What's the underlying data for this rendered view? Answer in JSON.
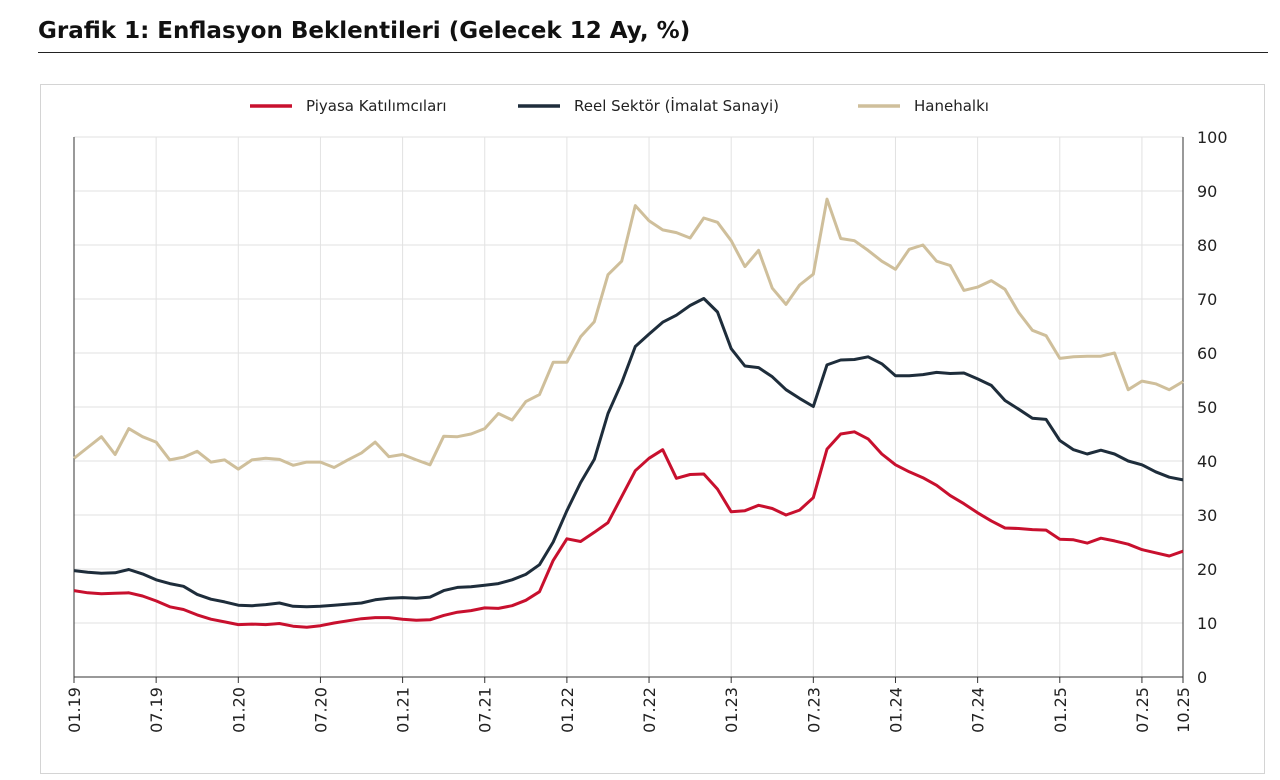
{
  "title": "Grafik 1: Enflasyon Beklentileri (Gelecek 12 Ay, %)",
  "chart_data": {
    "type": "line",
    "title": "Grafik 1: Enflasyon Beklentileri (Gelecek 12 Ay, %)",
    "x_start": "01.19",
    "x_end": "10.25",
    "frequency": "monthly",
    "x_tick_labels": [
      "01.19",
      "07.19",
      "01.20",
      "07.20",
      "01.21",
      "07.21",
      "01.22",
      "07.22",
      "01.23",
      "07.23",
      "01.24",
      "07.24",
      "01.25",
      "07.25",
      "10.25"
    ],
    "y_ticks": [
      0,
      10,
      20,
      30,
      40,
      50,
      60,
      70,
      80,
      90,
      100
    ],
    "ylim": [
      0,
      100
    ],
    "y_axis_side": "right",
    "grid": true,
    "legend_position": "top",
    "series": [
      {
        "name": "Piyasa Katılımcıları",
        "color": "#c8102e",
        "values": [
          16.0,
          15.6,
          15.4,
          15.5,
          15.6,
          15.0,
          14.1,
          13.0,
          12.5,
          11.5,
          10.7,
          10.2,
          9.7,
          9.8,
          9.7,
          9.9,
          9.4,
          9.2,
          9.5,
          10.0,
          10.4,
          10.8,
          11.0,
          11.0,
          10.7,
          10.5,
          10.6,
          11.4,
          12.0,
          12.3,
          12.8,
          12.7,
          13.2,
          14.2,
          15.8,
          21.6,
          25.6,
          25.1,
          26.8,
          28.6,
          33.4,
          38.2,
          40.5,
          42.1,
          36.8,
          37.5,
          37.6,
          34.8,
          30.6,
          30.8,
          31.8,
          31.2,
          30.0,
          30.9,
          33.2,
          42.2,
          45.0,
          45.4,
          44.1,
          41.3,
          39.3,
          38.0,
          36.9,
          35.5,
          33.6,
          32.1,
          30.4,
          28.9,
          27.6,
          27.5,
          27.3,
          27.2,
          25.5,
          25.4,
          24.8,
          25.7,
          25.2,
          24.6,
          23.6,
          23.0,
          22.4,
          23.3
        ]
      },
      {
        "name": "Reel Sektör (İmalat Sanayi)",
        "color": "#1e2d3b",
        "values": [
          19.7,
          19.4,
          19.2,
          19.3,
          19.9,
          19.1,
          18.0,
          17.3,
          16.8,
          15.3,
          14.4,
          13.9,
          13.3,
          13.2,
          13.4,
          13.7,
          13.1,
          13.0,
          13.1,
          13.3,
          13.5,
          13.7,
          14.3,
          14.6,
          14.7,
          14.6,
          14.8,
          16.0,
          16.6,
          16.7,
          17.0,
          17.3,
          18.0,
          19.0,
          20.8,
          25.0,
          30.8,
          36.0,
          40.3,
          48.8,
          54.5,
          61.2,
          63.5,
          65.7,
          67.0,
          68.8,
          70.1,
          67.6,
          60.8,
          57.6,
          57.3,
          55.6,
          53.2,
          51.6,
          50.1,
          57.8,
          58.7,
          58.8,
          59.3,
          58.0,
          55.8,
          55.8,
          56.0,
          56.4,
          56.2,
          56.3,
          55.2,
          54.0,
          51.2,
          49.6,
          47.9,
          47.7,
          43.8,
          42.1,
          41.3,
          42.0,
          41.3,
          40.0,
          39.3,
          38.0,
          37.0,
          36.5
        ]
      },
      {
        "name": "Hanehalkı",
        "color": "#cfbf9b",
        "values": [
          40.5,
          42.5,
          44.5,
          41.2,
          46.0,
          44.5,
          43.5,
          40.2,
          40.7,
          41.8,
          39.8,
          40.2,
          38.5,
          40.2,
          40.5,
          40.3,
          39.2,
          39.8,
          39.8,
          38.8,
          40.2,
          41.5,
          43.5,
          40.8,
          41.2,
          40.2,
          39.3,
          44.6,
          44.5,
          45.0,
          46.0,
          48.8,
          47.6,
          51.0,
          52.3,
          58.3,
          58.3,
          63.0,
          65.8,
          74.5,
          77.0,
          87.3,
          84.5,
          82.8,
          82.3,
          81.3,
          85.0,
          84.2,
          80.8,
          76.0,
          79.0,
          72.0,
          69.0,
          72.6,
          74.6,
          88.5,
          81.2,
          80.8,
          79.0,
          77.0,
          75.5,
          79.2,
          80.0,
          77.0,
          76.2,
          71.6,
          72.2,
          73.4,
          71.8,
          67.5,
          64.2,
          63.2,
          59.0,
          59.3,
          59.4,
          59.4,
          60.0,
          53.2,
          54.8,
          54.3,
          53.2,
          54.7
        ]
      }
    ]
  }
}
